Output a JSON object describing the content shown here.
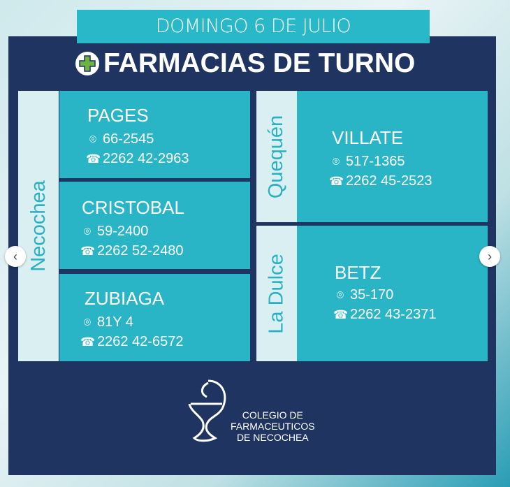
{
  "date": "DOMINGO 6 DE JULIO",
  "title": "FARMACIAS DE TURNO",
  "sections": {
    "necochea": {
      "label": "Necochea",
      "items": [
        {
          "name": "PAGES",
          "address": "66-2545",
          "phone": "2262 42-2963"
        },
        {
          "name": "CRISTOBAL",
          "address": "59-2400",
          "phone": "2262 52-2480"
        },
        {
          "name": "ZUBIAGA",
          "address": "81Y 4",
          "phone": "2262 42-6572"
        }
      ]
    },
    "quequen": {
      "label": "Quequén",
      "items": [
        {
          "name": "VILLATE",
          "address": "517-1365",
          "phone": "2262 45-2523"
        }
      ]
    },
    "ladulce": {
      "label": "La Dulce",
      "items": [
        {
          "name": "BETZ",
          "address": "35-170",
          "phone": "2262 43-2371"
        }
      ]
    }
  },
  "logo": {
    "line1": "COLEGIO DE",
    "line2": "FARMACEUTICOS",
    "line3": "DE NECOCHEA"
  },
  "colors": {
    "navy": "#1f3461",
    "teal": "#29b5c5",
    "green": "#6db33f"
  }
}
